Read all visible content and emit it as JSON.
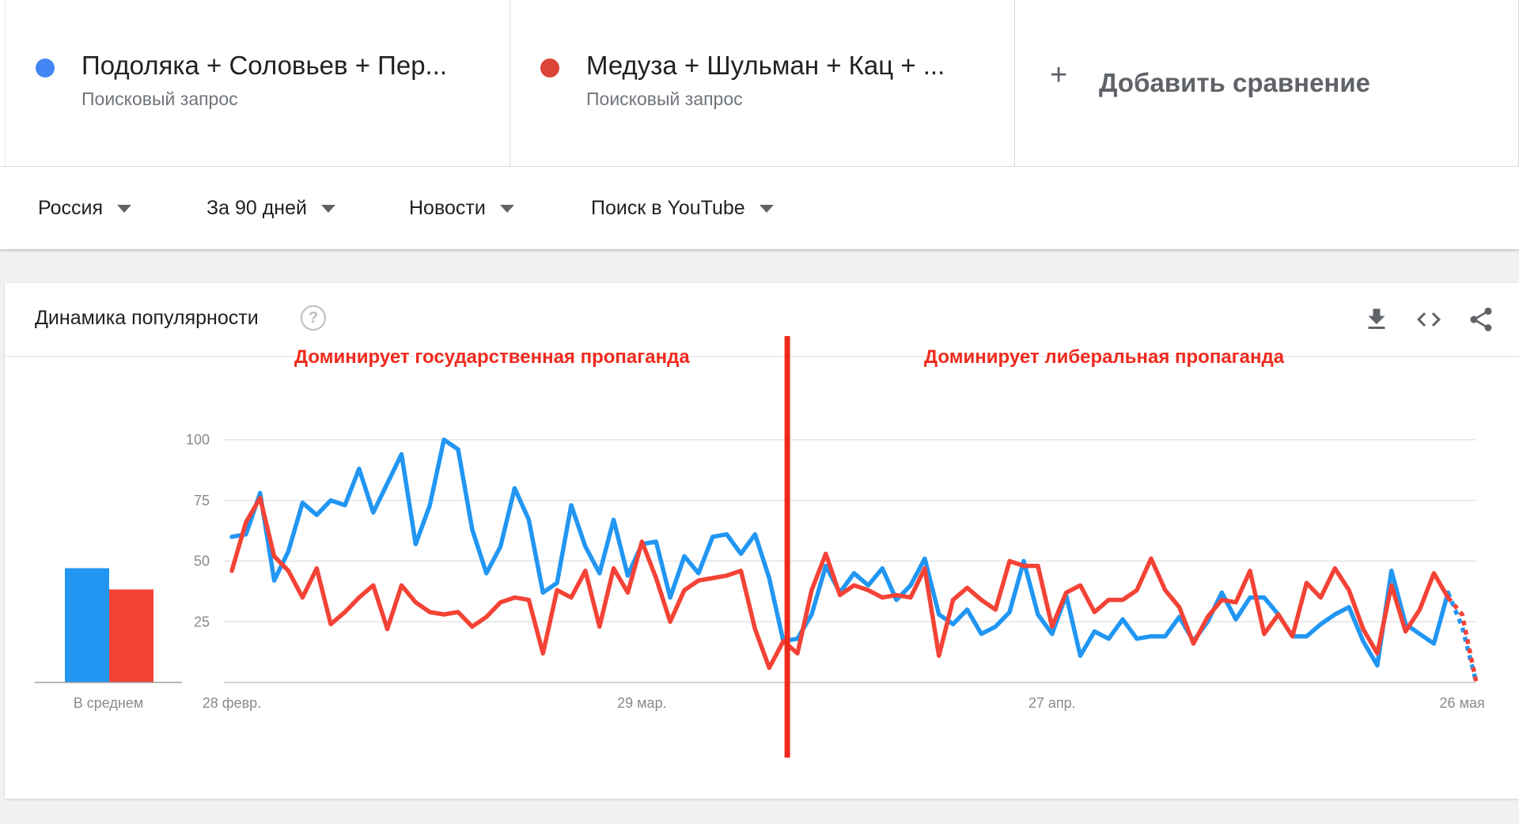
{
  "terms": [
    {
      "title": "Подоляка + Соловьев + Пер...",
      "subtitle": "Поисковый запрос",
      "color": "#4285f4"
    },
    {
      "title": "Медуза + Шульман + Кац + ...",
      "subtitle": "Поисковый запрос",
      "color": "#db4437"
    }
  ],
  "add_comparison": {
    "icon": "plus-icon",
    "label": "Добавить сравнение"
  },
  "filters": [
    {
      "label": "Россия"
    },
    {
      "label": "За 90 дней"
    },
    {
      "label": "Новости"
    },
    {
      "label": "Поиск в YouTube"
    }
  ],
  "card": {
    "title": "Динамика популярности",
    "help_icon": "question-circle-icon",
    "help_glyph": "?",
    "actions": [
      "download-icon",
      "embed-code-icon",
      "share-icon"
    ]
  },
  "annotations": {
    "left": "Доминирует государственная пропаганда",
    "right": "Доминирует либеральная пропаганда",
    "divider_color": "#f02a1d",
    "divider_at_index": 39
  },
  "chart_data": {
    "type": "line",
    "ylim": [
      0,
      100
    ],
    "yticks": [
      "100",
      "75",
      "50",
      "25"
    ],
    "x_tick_labels": [
      {
        "index": 0,
        "label": "28 февр."
      },
      {
        "index": 29,
        "label": "29 мар."
      },
      {
        "index": 58,
        "label": "27 апр."
      },
      {
        "index": 87,
        "label": "26 мая"
      }
    ],
    "partial_from_index": 86,
    "series": [
      {
        "color": "#2196f3",
        "average": 43,
        "values": [
          60,
          61,
          78,
          42,
          54,
          74,
          69,
          75,
          73,
          88,
          70,
          82,
          94,
          57,
          73,
          100,
          96,
          63,
          45,
          56,
          80,
          67,
          37,
          41,
          73,
          56,
          45,
          67,
          44,
          57,
          58,
          35,
          52,
          45,
          60,
          61,
          53,
          61,
          43,
          17,
          18,
          28,
          48,
          37,
          45,
          40,
          47,
          34,
          40,
          51,
          28,
          24,
          30,
          20,
          23,
          29,
          50,
          28,
          20,
          36,
          11,
          21,
          18,
          26,
          18,
          19,
          19,
          27,
          17,
          25,
          37,
          26,
          35,
          35,
          28,
          19,
          19,
          24,
          28,
          31,
          17,
          7,
          46,
          24,
          20,
          16,
          37,
          23,
          0
        ]
      },
      {
        "color": "#f44336",
        "average": 35,
        "values": [
          46,
          66,
          76,
          52,
          46,
          35,
          47,
          24,
          29,
          35,
          40,
          22,
          40,
          33,
          29,
          28,
          29,
          23,
          27,
          33,
          35,
          34,
          12,
          38,
          35,
          46,
          23,
          47,
          37,
          58,
          43,
          25,
          38,
          42,
          43,
          44,
          46,
          22,
          6,
          17,
          12,
          38,
          53,
          36,
          40,
          38,
          35,
          36,
          35,
          47,
          11,
          34,
          39,
          34,
          30,
          50,
          48,
          48,
          23,
          37,
          40,
          29,
          34,
          34,
          38,
          51,
          38,
          31,
          16,
          27,
          34,
          33,
          46,
          20,
          28,
          19,
          41,
          35,
          47,
          38,
          22,
          12,
          40,
          21,
          30,
          45,
          35,
          28,
          0
        ]
      }
    ],
    "avg_label": "В среднем"
  }
}
